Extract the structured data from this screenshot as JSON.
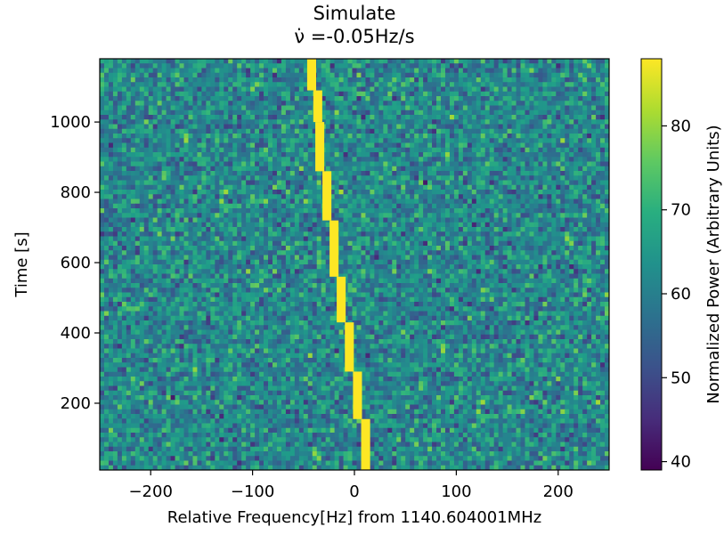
{
  "chart_data": {
    "type": "heatmap",
    "title_line1": "Simulate",
    "title_line2": "ν̇ =-0.05Hz/s",
    "xlabel": "Relative Frequency[Hz] from 1140.604001MHz",
    "ylabel": "Time [s]",
    "colorbar_label": "Normalized Power (Arbitrary Units)",
    "colormap": "viridis",
    "xlim": [
      -250,
      250
    ],
    "ylim": [
      10,
      1180
    ],
    "x_ticks": [
      -200,
      -100,
      0,
      100,
      200
    ],
    "x_tick_labels": [
      "−200",
      "−100",
      "0",
      "100",
      "200"
    ],
    "y_ticks": [
      200,
      400,
      600,
      800,
      1000
    ],
    "y_tick_labels": [
      "200",
      "400",
      "600",
      "800",
      "1000"
    ],
    "color_range": [
      39,
      88
    ],
    "colorbar_ticks": [
      40,
      50,
      60,
      70,
      80
    ],
    "colorbar_tick_labels": [
      "40",
      "50",
      "60",
      "70",
      "80"
    ],
    "background_power_mean": 62,
    "signal_power": 88,
    "signal_track": [
      {
        "t_start": 10,
        "t_end": 155,
        "freq": 11
      },
      {
        "t_start": 155,
        "t_end": 290,
        "freq": 3
      },
      {
        "t_start": 290,
        "t_end": 430,
        "freq": -5
      },
      {
        "t_start": 430,
        "t_end": 560,
        "freq": -13
      },
      {
        "t_start": 560,
        "t_end": 720,
        "freq": -20
      },
      {
        "t_start": 720,
        "t_end": 860,
        "freq": -27
      },
      {
        "t_start": 860,
        "t_end": 1000,
        "freq": -34
      },
      {
        "t_start": 1000,
        "t_end": 1090,
        "freq": -36
      },
      {
        "t_start": 1090,
        "t_end": 1180,
        "freq": -42
      }
    ]
  }
}
